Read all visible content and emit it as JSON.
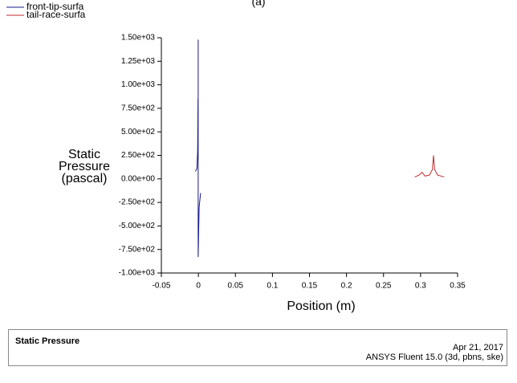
{
  "chart_data": {
    "type": "line",
    "title": "(a)",
    "xlabel": "Position (m)",
    "ylabel": "Static Pressure (pascal)",
    "xlim": [
      -0.05,
      0.35
    ],
    "xticks": [
      -0.05,
      0,
      0.05,
      0.1,
      0.15,
      0.2,
      0.25,
      0.3,
      0.35
    ],
    "ylim": [
      -1000,
      1500
    ],
    "yticks": [
      {
        "value": -1000,
        "label": "-1.00e+03"
      },
      {
        "value": -750,
        "label": "-7.50e+02"
      },
      {
        "value": -500,
        "label": "-5.00e+02"
      },
      {
        "value": -250,
        "label": "-2.50e+02"
      },
      {
        "value": 0,
        "label": "0.00e+00"
      },
      {
        "value": 250,
        "label": "2.50e+02"
      },
      {
        "value": 500,
        "label": "5.00e+02"
      },
      {
        "value": 750,
        "label": "7.50e+02"
      },
      {
        "value": 1000,
        "label": "1.00e+03"
      },
      {
        "value": 1250,
        "label": "1.25e+03"
      },
      {
        "value": 1500,
        "label": "1.50e+03"
      }
    ],
    "grid": false,
    "legend": "top-left",
    "series": [
      {
        "name": "front-tip-surfa",
        "color": "#1a1a8c",
        "x": [
          -0.004,
          -0.002,
          -0.001,
          -0.0005,
          null,
          -0.0003,
          -0.0003,
          0.001,
          0.003
        ],
        "values": [
          80,
          110,
          300,
          850,
          null,
          1480,
          -830,
          -300,
          -150
        ]
      },
      {
        "name": "tail-race-surfa",
        "color": "#c0282c",
        "x": [
          0.292,
          0.298,
          0.302,
          0.306,
          0.312,
          0.316,
          0.3175,
          0.319,
          0.323,
          0.332
        ],
        "values": [
          20,
          40,
          70,
          30,
          40,
          100,
          250,
          100,
          40,
          20
        ]
      }
    ]
  },
  "footer": {
    "left": "Static Pressure",
    "date": "Apr 21, 2017",
    "software": "ANSYS Fluent 15.0 (3d, pbns, ske)"
  }
}
